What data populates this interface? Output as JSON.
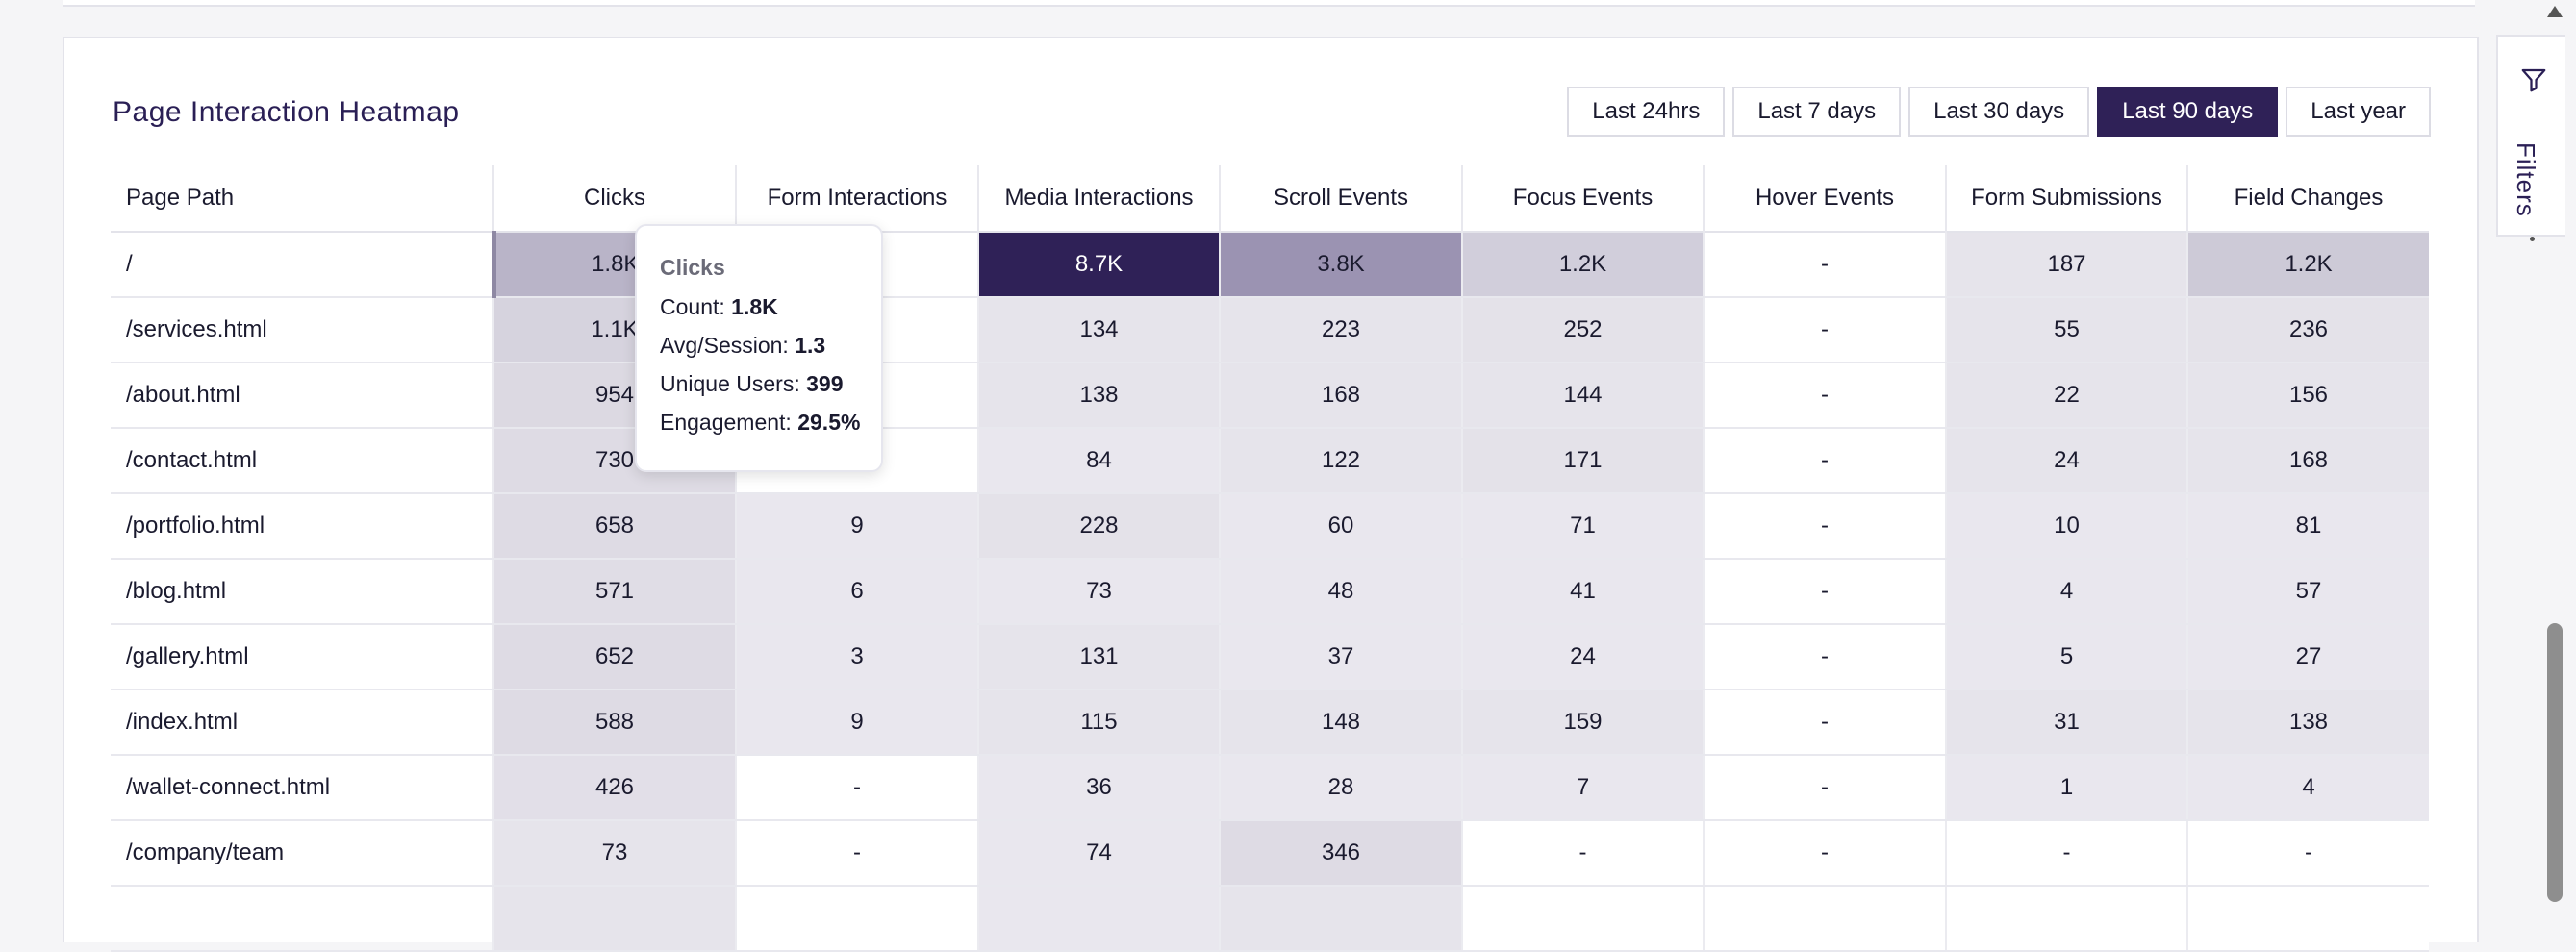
{
  "title": "Page Interaction Heatmap",
  "ranges": [
    {
      "label": "Last 24hrs",
      "active": false
    },
    {
      "label": "Last 7 days",
      "active": false
    },
    {
      "label": "Last 30 days",
      "active": false
    },
    {
      "label": "Last 90 days",
      "active": true
    },
    {
      "label": "Last year",
      "active": false
    }
  ],
  "columns": [
    "Page Path",
    "Clicks",
    "Form Interactions",
    "Media Interactions",
    "Scroll Events",
    "Focus Events",
    "Hover Events",
    "Form Submissions",
    "Field Changes"
  ],
  "rows": [
    {
      "path": "/",
      "cells": [
        "1.8K",
        "",
        "8.7K",
        "3.8K",
        "1.2K",
        "-",
        "187",
        "1.2K"
      ]
    },
    {
      "path": "/services.html",
      "cells": [
        "1.1K",
        "",
        "134",
        "223",
        "252",
        "-",
        "55",
        "236"
      ]
    },
    {
      "path": "/about.html",
      "cells": [
        "954",
        "",
        "138",
        "168",
        "144",
        "-",
        "22",
        "156"
      ]
    },
    {
      "path": "/contact.html",
      "cells": [
        "730",
        "",
        "84",
        "122",
        "171",
        "-",
        "24",
        "168"
      ]
    },
    {
      "path": "/portfolio.html",
      "cells": [
        "658",
        "9",
        "228",
        "60",
        "71",
        "-",
        "10",
        "81"
      ]
    },
    {
      "path": "/blog.html",
      "cells": [
        "571",
        "6",
        "73",
        "48",
        "41",
        "-",
        "4",
        "57"
      ]
    },
    {
      "path": "/gallery.html",
      "cells": [
        "652",
        "3",
        "131",
        "37",
        "24",
        "-",
        "5",
        "27"
      ]
    },
    {
      "path": "/index.html",
      "cells": [
        "588",
        "9",
        "115",
        "148",
        "159",
        "-",
        "31",
        "138"
      ]
    },
    {
      "path": "/wallet-connect.html",
      "cells": [
        "426",
        "-",
        "36",
        "28",
        "7",
        "-",
        "1",
        "4"
      ]
    },
    {
      "path": "/company/team",
      "cells": [
        "73",
        "-",
        "74",
        "346",
        "-",
        "-",
        "-",
        "-"
      ]
    },
    {
      "path": "",
      "cells": [
        "",
        "",
        "",
        "",
        "",
        "",
        "",
        ""
      ]
    }
  ],
  "tooltip": {
    "title": "Clicks",
    "lines": [
      {
        "label": "Count: ",
        "value": "1.8K"
      },
      {
        "label": "Avg/Session: ",
        "value": "1.3"
      },
      {
        "label": "Unique Users: ",
        "value": "399"
      },
      {
        "label": "Engagement: ",
        "value": "29.5%"
      }
    ]
  },
  "filters_label": "Filters",
  "colors": {
    "accent": "#2f2157",
    "heat_max": "#2f2157",
    "heat_high": "#9b93b2",
    "heat_mid": "#b9b4c8",
    "heat_low": "#e6e4eb",
    "empty": "#ffffff"
  }
}
